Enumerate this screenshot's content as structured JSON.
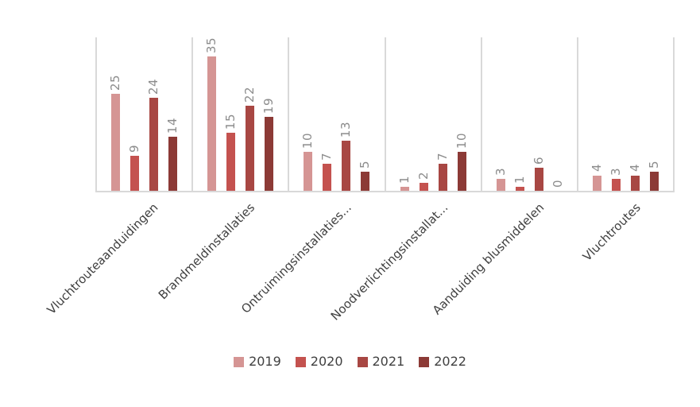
{
  "chart_data": {
    "type": "bar",
    "title": "",
    "xlabel": "",
    "ylabel": "",
    "categories": [
      "Vluchtrouteaanduidingen",
      "Brandmeldinstallaties",
      "Ontruimingsinstallaties...",
      "Noodverlichtingsinstallat...",
      "Aanduiding blusmiddelen",
      "Vluchtroutes"
    ],
    "series": [
      {
        "name": "2019",
        "color": "#D59594",
        "values": [
          25,
          35,
          10,
          1,
          3,
          4
        ]
      },
      {
        "name": "2020",
        "color": "#C4524F",
        "values": [
          9,
          15,
          7,
          2,
          1,
          3
        ]
      },
      {
        "name": "2021",
        "color": "#A84743",
        "values": [
          24,
          22,
          13,
          7,
          6,
          4
        ]
      },
      {
        "name": "2022",
        "color": "#8C3A36",
        "values": [
          14,
          19,
          5,
          10,
          0,
          5
        ]
      }
    ],
    "ylim": [
      0,
      40
    ],
    "y_axis_labels_visible": false,
    "grid": "vertical-category-separators",
    "legend_position": "bottom-center",
    "value_labels": "rotated-90-above-bars",
    "category_label_rotation_deg": 45
  },
  "style": {
    "background": "#FFFFFF",
    "grid_color": "#D9D9D9",
    "axis_line_color": "#D9D9D9",
    "value_label_color": "#8C8C8C",
    "category_label_color": "#404040",
    "legend_text_color": "#404040"
  }
}
